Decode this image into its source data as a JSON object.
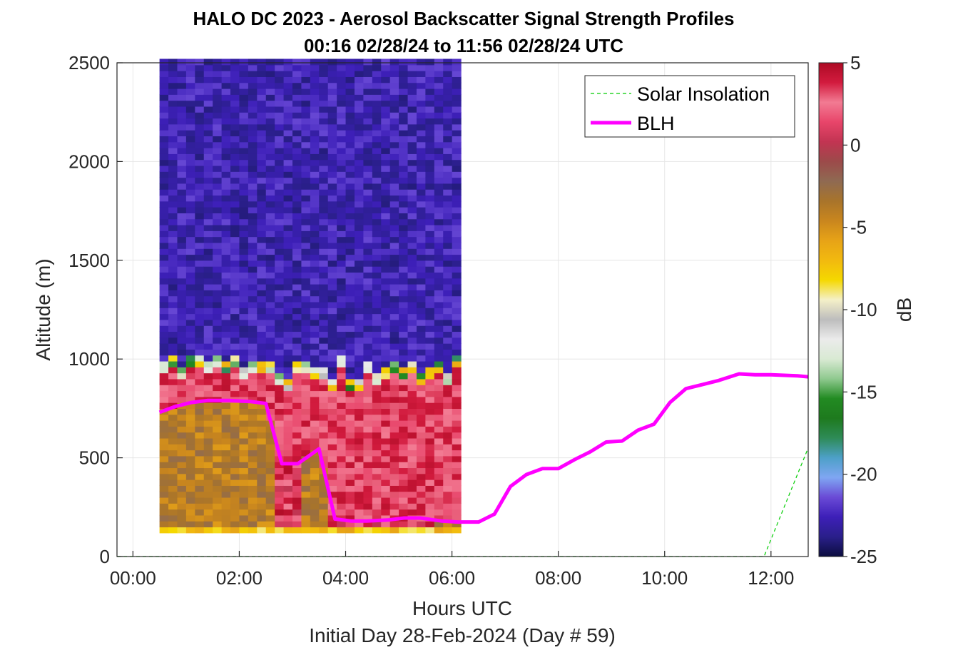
{
  "chart_data": {
    "type": "heatmap",
    "title": "HALO DC 2023 - Aerosol Backscatter Signal Strength Profiles",
    "subtitle": "00:16 02/28/24 to 11:56 02/28/24  UTC",
    "xlabel": "Hours UTC",
    "xlabel2": "Initial Day 28-Feb-2024 (Day # 59)",
    "ylabel": "Altitude (m)",
    "xlim": [
      -0.3,
      12.7
    ],
    "ylim": [
      0,
      2500
    ],
    "x_ticks": [
      0,
      2,
      4,
      6,
      8,
      10,
      12
    ],
    "x_tick_labels": [
      "00:00",
      "02:00",
      "04:00",
      "06:00",
      "08:00",
      "10:00",
      "12:00"
    ],
    "y_ticks": [
      0,
      500,
      1000,
      1500,
      2000,
      2500
    ],
    "y_tick_labels": [
      "0",
      "500",
      "1000",
      "1500",
      "2000",
      "2500"
    ],
    "grid": true,
    "colorbar": {
      "label": "dB",
      "range": [
        -25,
        5
      ],
      "ticks": [
        5,
        0,
        -5,
        -10,
        -15,
        -20,
        -25
      ],
      "tick_labels": [
        "5",
        "0",
        "-5",
        "-10",
        "-15",
        "-20",
        "-25"
      ],
      "colors": [
        "#0b0d3f",
        "#2a1f8a",
        "#3d1fb8",
        "#6a4ad6",
        "#7fa6f2",
        "#4da0c8",
        "#2e8b57",
        "#1e7a1e",
        "#228b22",
        "#8fc98f",
        "#d9ead3",
        "#ebebeb",
        "#bdbdbd",
        "#f4f0c8",
        "#f5d800",
        "#f2b90f",
        "#e7a317",
        "#c9861e",
        "#a8742b",
        "#8f6a52",
        "#9c4a4a",
        "#c23452",
        "#e8456a",
        "#f27b93",
        "#d21b3e",
        "#ad0a24"
      ]
    },
    "heatmap": {
      "x_start": 0.5,
      "x_step": 0.1667,
      "columns": 34,
      "altitude_bins_m": 30,
      "value_units": "dB",
      "description_regions": [
        {
          "altitude_range": [
            0,
            150
          ],
          "value_dB": -7
        },
        {
          "altitude_range": [
            150,
            600
          ],
          "value_dB": -4
        },
        {
          "altitude_range": [
            600,
            950
          ],
          "value_dB": 3
        },
        {
          "altitude_range": [
            950,
            2500
          ],
          "value_dB": -24
        }
      ]
    },
    "series": [
      {
        "name": "Solar Insolation",
        "style": "dashed",
        "color": "#00cc00",
        "x": [
          -0.3,
          11.87,
          12.7
        ],
        "y": [
          0,
          0,
          550
        ]
      },
      {
        "name": "BLH",
        "style": "solid",
        "color": "#ff00ff",
        "x": [
          0.5,
          0.8,
          1.1,
          1.4,
          1.8,
          2.2,
          2.5,
          2.8,
          3.1,
          3.5,
          3.8,
          4.1,
          4.4,
          4.8,
          5.1,
          5.4,
          5.8,
          6.1,
          6.5,
          6.8,
          7.1,
          7.4,
          7.7,
          8.0,
          8.3,
          8.6,
          8.9,
          9.2,
          9.5,
          9.8,
          10.1,
          10.4,
          10.7,
          11.0,
          11.4,
          11.7,
          12.0,
          12.5,
          12.7
        ],
        "y": [
          730,
          760,
          780,
          790,
          790,
          785,
          775,
          470,
          470,
          545,
          190,
          180,
          180,
          185,
          195,
          195,
          180,
          175,
          175,
          215,
          355,
          415,
          445,
          445,
          490,
          530,
          580,
          585,
          640,
          670,
          780,
          850,
          870,
          890,
          925,
          920,
          920,
          915,
          910
        ]
      }
    ],
    "legend": {
      "placement": "top-right",
      "entries": [
        "Solar Insolation",
        "BLH"
      ]
    }
  }
}
